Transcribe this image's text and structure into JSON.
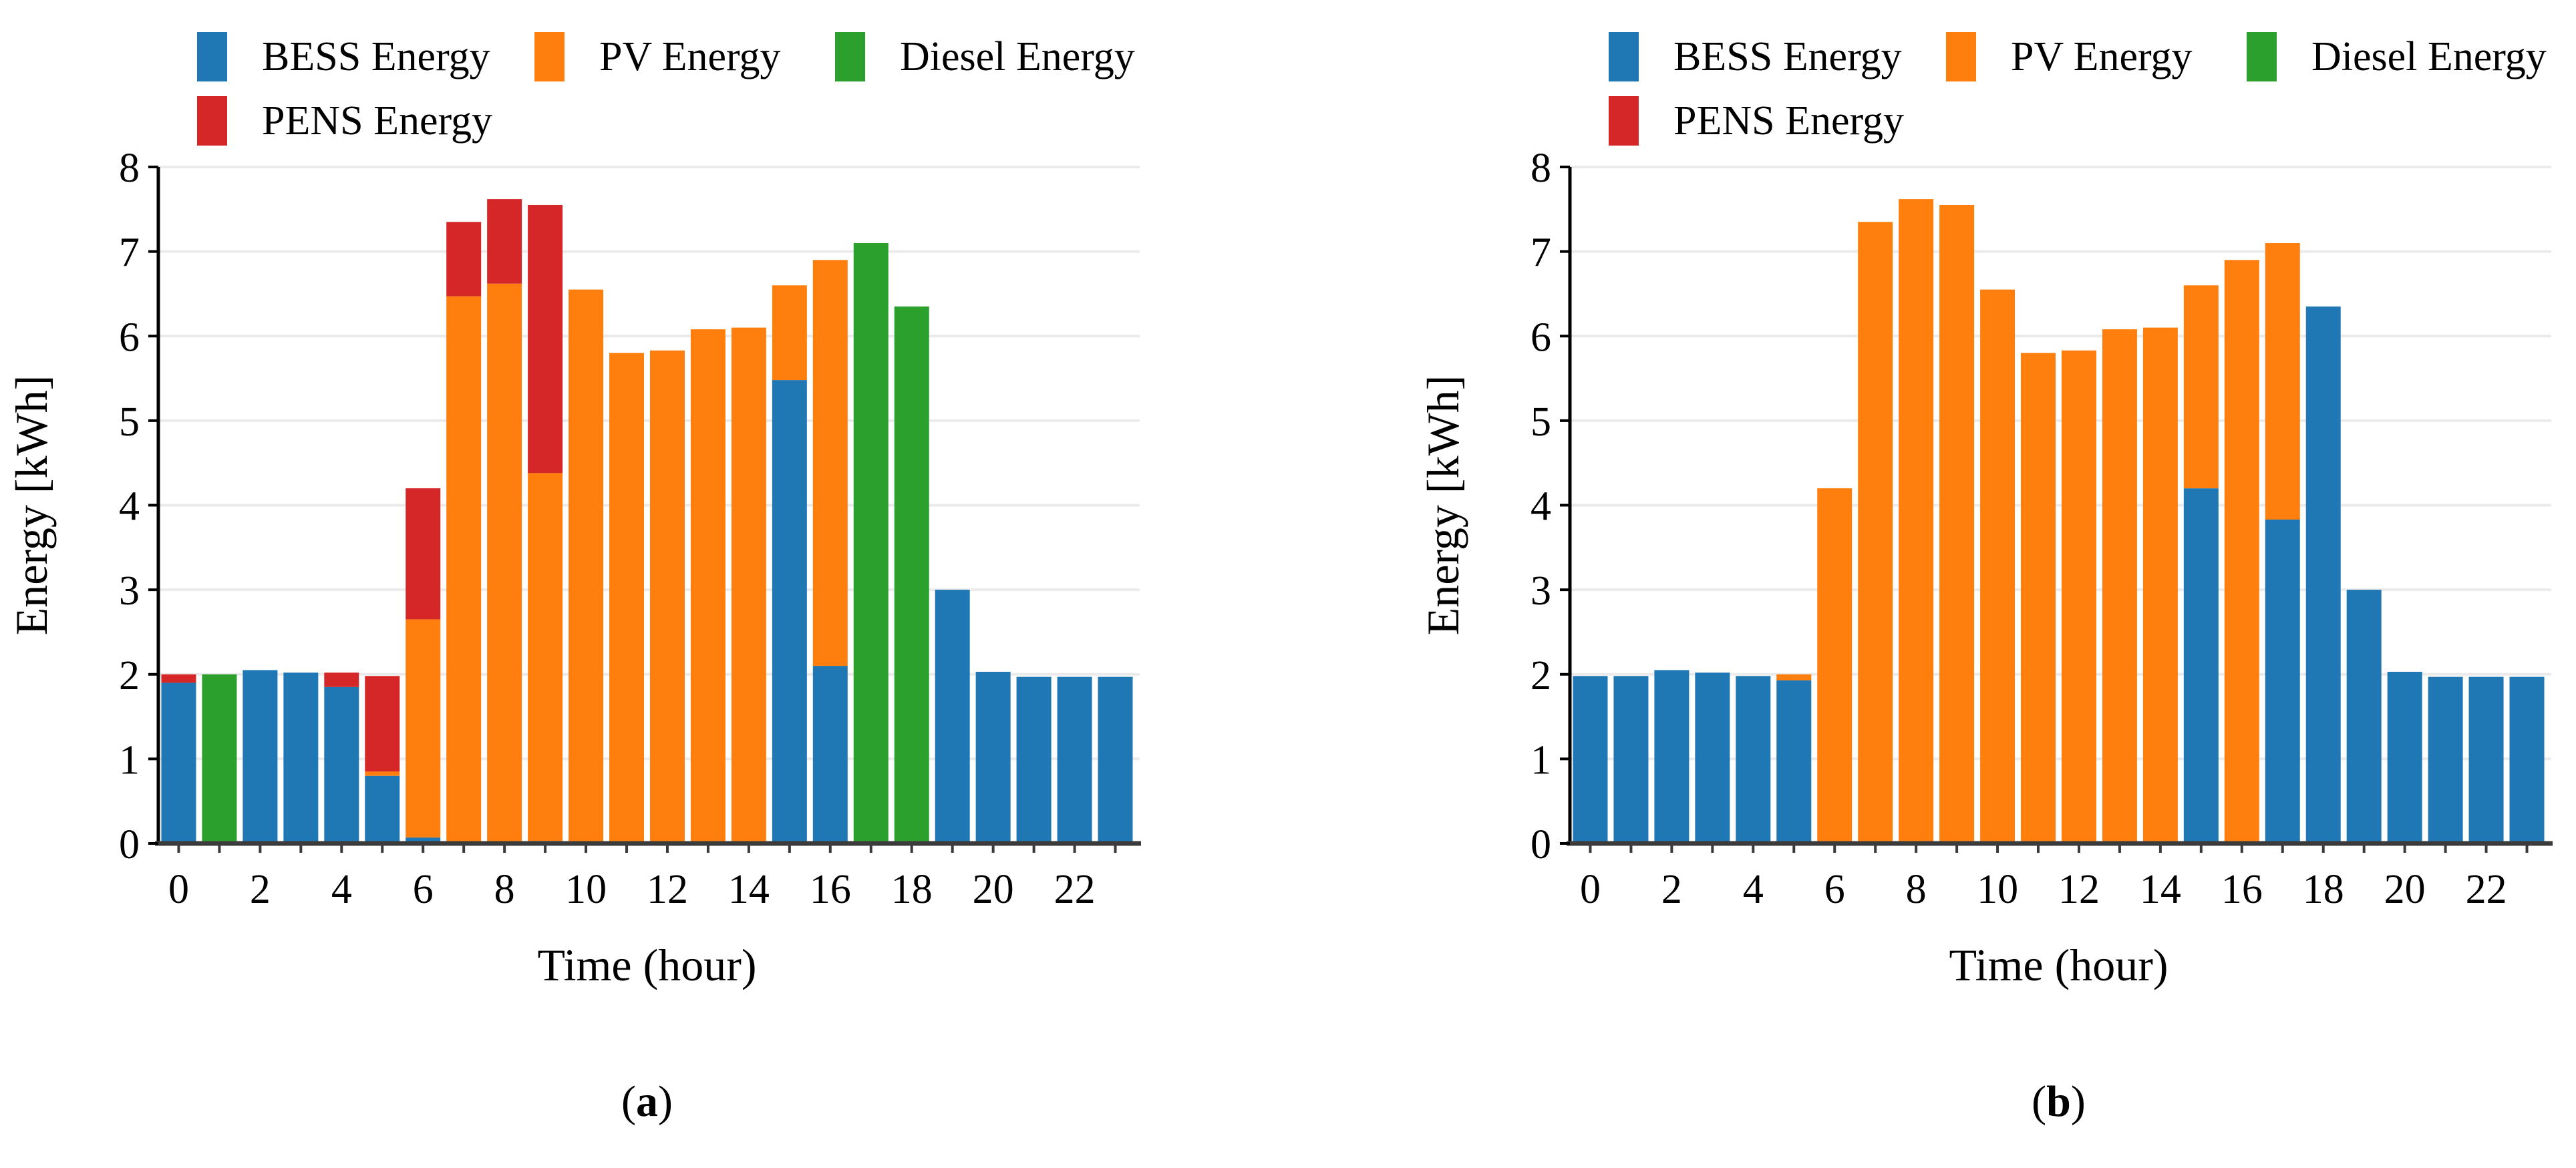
{
  "page": {
    "background": "#ffffff",
    "panels": [
      {
        "caption_open": "(",
        "caption_letter": "a",
        "caption_close": ")"
      },
      {
        "caption_open": "(",
        "caption_letter": "b",
        "caption_close": ")"
      }
    ]
  },
  "chart_data": [
    {
      "id": "a",
      "type": "bar",
      "stacked": true,
      "caption": "(a)",
      "xlabel": "Time (hour)",
      "ylabel": "Energy [kWh]",
      "x": [
        0,
        1,
        2,
        3,
        4,
        5,
        6,
        7,
        8,
        9,
        10,
        11,
        12,
        13,
        14,
        15,
        16,
        17,
        18,
        19,
        20,
        21,
        22,
        23
      ],
      "xtick_labels": [
        "0",
        "2",
        "4",
        "6",
        "8",
        "10",
        "12",
        "14",
        "16",
        "18",
        "20",
        "22"
      ],
      "xtick_positions": [
        0,
        2,
        4,
        6,
        8,
        10,
        12,
        14,
        16,
        18,
        20,
        22
      ],
      "ylim": [
        0,
        8
      ],
      "yticks": [
        0,
        1,
        2,
        3,
        4,
        5,
        6,
        7,
        8
      ],
      "grid": "horizontal",
      "grid_color": "#ebebeb",
      "spine_color": "#000000",
      "xaxis_color": "#3b3b3b",
      "legend_position": "top",
      "series": [
        {
          "name": "BESS Energy",
          "color": "#1f77b4",
          "values": [
            1.9,
            0,
            2.05,
            2.02,
            1.85,
            0.8,
            0.07,
            0.02,
            0.02,
            0.03,
            0,
            0,
            0,
            0,
            0,
            5.48,
            2.1,
            0,
            0,
            3.0,
            2.03,
            1.97,
            1.97,
            1.97
          ]
        },
        {
          "name": "PV Energy",
          "color": "#ff7f0e",
          "values": [
            0,
            0,
            0,
            0,
            0,
            0.05,
            2.58,
            6.45,
            6.6,
            4.35,
            6.55,
            5.8,
            5.83,
            6.08,
            6.1,
            1.12,
            4.8,
            0,
            0,
            0,
            0,
            0,
            0,
            0
          ]
        },
        {
          "name": "Diesel Energy",
          "color": "#2ca02c",
          "values": [
            0,
            2.0,
            0,
            0,
            0,
            0,
            0,
            0,
            0,
            0,
            0,
            0,
            0,
            0,
            0,
            0,
            0,
            7.1,
            6.35,
            0,
            0,
            0,
            0,
            0
          ]
        },
        {
          "name": "PENS Energy",
          "color": "#d62728",
          "values": [
            0.1,
            0,
            0,
            0,
            0.17,
            1.13,
            1.55,
            0.88,
            1.0,
            3.17,
            0,
            0,
            0,
            0,
            0,
            0,
            0,
            0,
            0,
            0,
            0,
            0,
            0,
            0
          ]
        }
      ]
    },
    {
      "id": "b",
      "type": "bar",
      "stacked": true,
      "caption": "(b)",
      "xlabel": "Time (hour)",
      "ylabel": "Energy [kWh]",
      "x": [
        0,
        1,
        2,
        3,
        4,
        5,
        6,
        7,
        8,
        9,
        10,
        11,
        12,
        13,
        14,
        15,
        16,
        17,
        18,
        19,
        20,
        21,
        22,
        23
      ],
      "xtick_labels": [
        "0",
        "2",
        "4",
        "6",
        "8",
        "10",
        "12",
        "14",
        "16",
        "18",
        "20",
        "22"
      ],
      "xtick_positions": [
        0,
        2,
        4,
        6,
        8,
        10,
        12,
        14,
        16,
        18,
        20,
        22
      ],
      "ylim": [
        0,
        8
      ],
      "yticks": [
        0,
        1,
        2,
        3,
        4,
        5,
        6,
        7,
        8
      ],
      "grid": "horizontal",
      "grid_color": "#ebebeb",
      "spine_color": "#000000",
      "xaxis_color": "#3b3b3b",
      "legend_position": "top",
      "series": [
        {
          "name": "BESS Energy",
          "color": "#1f77b4",
          "values": [
            1.98,
            1.98,
            2.05,
            2.02,
            1.98,
            1.93,
            0,
            0,
            0,
            0,
            0,
            0,
            0,
            0,
            0,
            4.2,
            0,
            3.83,
            6.35,
            3.0,
            2.03,
            1.97,
            1.97,
            1.97
          ]
        },
        {
          "name": "PV Energy",
          "color": "#ff7f0e",
          "values": [
            0,
            0,
            0,
            0,
            0,
            0.07,
            4.2,
            7.35,
            7.62,
            7.55,
            6.55,
            5.8,
            5.83,
            6.08,
            6.1,
            2.4,
            6.9,
            3.27,
            0,
            0,
            0,
            0,
            0,
            0
          ]
        },
        {
          "name": "Diesel Energy",
          "color": "#2ca02c",
          "values": [
            0,
            0,
            0,
            0,
            0,
            0,
            0,
            0,
            0,
            0,
            0,
            0,
            0,
            0,
            0,
            0,
            0,
            0,
            0,
            0,
            0,
            0,
            0,
            0
          ]
        },
        {
          "name": "PENS Energy",
          "color": "#d62728",
          "values": [
            0,
            0,
            0,
            0,
            0,
            0,
            0,
            0,
            0,
            0,
            0,
            0,
            0,
            0,
            0,
            0,
            0,
            0,
            0,
            0,
            0,
            0,
            0,
            0
          ]
        }
      ]
    }
  ]
}
